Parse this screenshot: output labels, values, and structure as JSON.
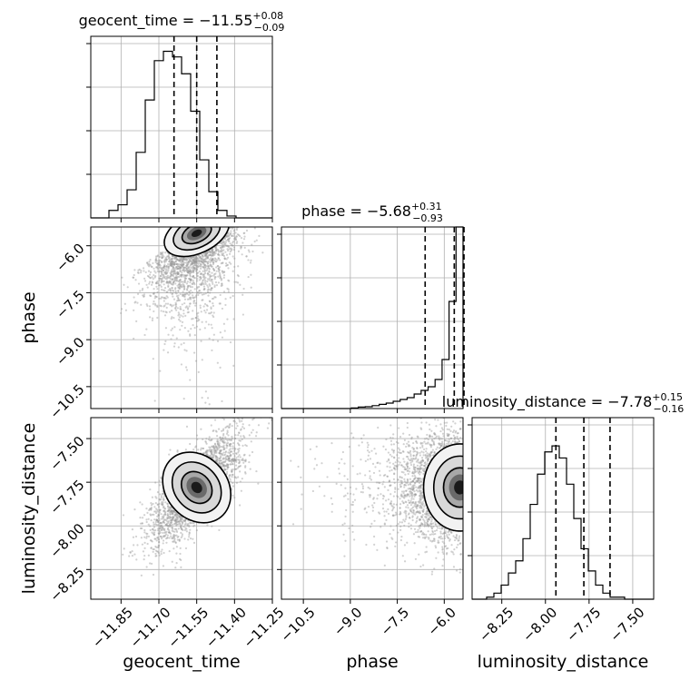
{
  "chart_data": {
    "type": "corner",
    "parameters": [
      "geocent_time",
      "phase",
      "luminosity_distance"
    ],
    "ranges": {
      "geocent_time": [
        -11.97,
        -11.25
      ],
      "phase": [
        -11.2,
        -5.4
      ],
      "luminosity_distance": [
        -8.42,
        -7.38
      ]
    },
    "ticks": {
      "geocent_time": [
        "−11.85",
        "−11.70",
        "−11.55",
        "−11.40",
        "−11.25"
      ],
      "phase": [
        "−10.5",
        "−9.0",
        "−7.5",
        "−6.0"
      ],
      "luminosity_distance": [
        "−8.25",
        "−8.00",
        "−7.75",
        "−7.50"
      ]
    },
    "tick_values": {
      "geocent_time": [
        -11.85,
        -11.7,
        -11.55,
        -11.4,
        -11.25
      ],
      "phase": [
        -10.5,
        -9.0,
        -7.5,
        -6.0
      ],
      "luminosity_distance": [
        -8.25,
        -8.0,
        -7.75,
        -7.5
      ]
    },
    "titles": [
      {
        "param": "geocent_time",
        "label": "geocent_time = ",
        "median": "−11.55",
        "plus": "+0.08",
        "minus": "−0.09"
      },
      {
        "param": "phase",
        "label": "phase = ",
        "median": "−5.68",
        "plus": "+0.31",
        "minus": "−0.93"
      },
      {
        "param": "luminosity_distance",
        "label": "luminosity_distance = ",
        "median": "−7.78",
        "plus": "+0.15",
        "minus": "−0.16"
      }
    ],
    "quantiles": {
      "geocent_time": [
        -11.64,
        -11.55,
        -11.47
      ],
      "phase": [
        -6.61,
        -5.68,
        -5.37
      ],
      "luminosity_distance": [
        -7.94,
        -7.78,
        -7.63
      ]
    },
    "histograms": {
      "geocent_time": [
        0,
        0,
        0.04,
        0.07,
        0.15,
        0.35,
        0.63,
        0.84,
        0.89,
        0.86,
        0.77,
        0.57,
        0.31,
        0.14,
        0.04,
        0.01,
        0,
        0,
        0,
        0
      ],
      "phase": [
        0,
        0,
        0,
        0,
        0,
        0,
        0,
        0,
        0,
        0,
        0.003,
        0.008,
        0.01,
        0.016,
        0.023,
        0.03,
        0.04,
        0.05,
        0.06,
        0.08,
        0.1,
        0.12,
        0.16,
        0.27,
        0.59,
        1.0
      ],
      "luminosity_distance": [
        0,
        0,
        0.01,
        0.03,
        0.07,
        0.13,
        0.19,
        0.3,
        0.47,
        0.62,
        0.73,
        0.76,
        0.7,
        0.57,
        0.4,
        0.25,
        0.14,
        0.07,
        0.03,
        0.01,
        0.01,
        0,
        0,
        0,
        0
      ],
      "geocent_time_ymax": 0.97,
      "phase_ymax": 1.0,
      "luminosity_distance_ymax": 0.9
    },
    "posterior_2d": {
      "phase_vs_geocent_time": {
        "mean_x": -11.55,
        "mean_y": -6.4,
        "sd_x": 0.09,
        "sd_y": 0.9,
        "corr": 0.35
      },
      "luminosity_distance_vs_geocent_time": {
        "mean_x": -11.55,
        "mean_y": -7.78,
        "sd_x": 0.09,
        "sd_y": 0.16,
        "corr": 0.75
      },
      "luminosity_distance_vs_phase": {
        "mean_x": -5.68,
        "mean_y": -7.78,
        "sd_x": 0.9,
        "sd_y": 0.16,
        "corr": 0.1
      }
    },
    "grid": true
  }
}
